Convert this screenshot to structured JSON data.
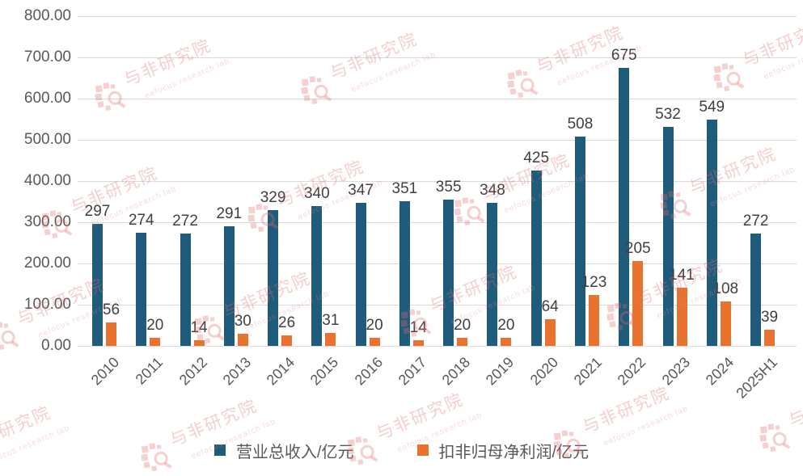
{
  "watermark": {
    "text": "与非研究院",
    "subtext": "eefocus research lab",
    "color": "#e76e6e"
  },
  "colors": {
    "revenue_bar": "#1f5c7c",
    "profit_bar": "#e8732e",
    "gridline": "#d9d9d9",
    "axis_text": "#595959",
    "value_label_text": "#404040",
    "background": "#ffffff"
  },
  "chart_data": {
    "type": "bar",
    "title": "",
    "xlabel": "",
    "ylabel": "",
    "categories": [
      "2010",
      "2011",
      "2012",
      "2013",
      "2014",
      "2015",
      "2016",
      "2017",
      "2018",
      "2019",
      "2020",
      "2021",
      "2022",
      "2023",
      "2024",
      "2025H1"
    ],
    "series": [
      {
        "name": "营业总收入/亿元",
        "color": "#1f5c7c",
        "values": [
          297,
          274,
          272,
          291,
          329,
          340,
          347,
          351,
          355,
          348,
          425,
          508,
          675,
          532,
          549,
          272
        ]
      },
      {
        "name": "扣非归母净利润/亿元",
        "color": "#e8732e",
        "values": [
          56,
          20,
          14,
          30,
          26,
          31,
          20,
          14,
          20,
          20,
          64,
          123,
          205,
          141,
          108,
          39
        ]
      }
    ],
    "ylim": [
      0,
      800
    ],
    "ytick_step": 100,
    "ytick_labels": [
      "0.00",
      "100.00",
      "200.00",
      "300.00",
      "400.00",
      "500.00",
      "600.00",
      "700.00",
      "800.00"
    ],
    "grid": true,
    "value_labels_shown": true,
    "legend_position": "bottom"
  }
}
